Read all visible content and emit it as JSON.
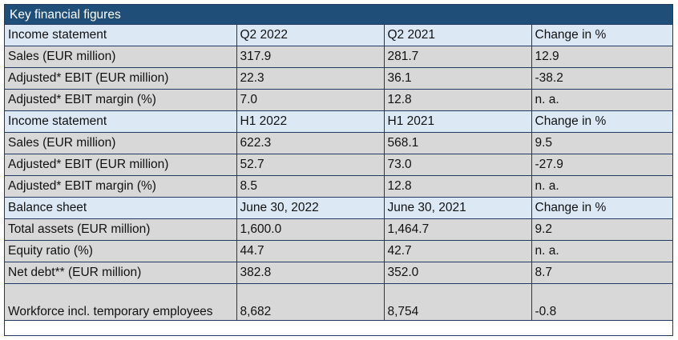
{
  "table": {
    "title": "Key financial figures",
    "sections": [
      {
        "header": [
          "Income statement",
          "Q2 2022",
          "Q2 2021",
          "Change in %"
        ],
        "rows": [
          [
            "Sales (EUR million)",
            "317.9",
            "281.7",
            "12.9"
          ],
          [
            "Adjusted* EBIT (EUR million)",
            "22.3",
            "36.1",
            "-38.2"
          ],
          [
            "Adjusted* EBIT margin (%)",
            "7.0",
            "12.8",
            "n. a."
          ]
        ]
      },
      {
        "header": [
          "Income statement",
          "H1 2022",
          "H1 2021",
          "Change in %"
        ],
        "rows": [
          [
            "Sales (EUR million)",
            "622.3",
            "568.1",
            "9.5"
          ],
          [
            "Adjusted* EBIT (EUR million)",
            "52.7",
            "73.0",
            "-27.9"
          ],
          [
            "Adjusted* EBIT margin (%)",
            "8.5",
            "12.8",
            "n. a."
          ]
        ]
      },
      {
        "header": [
          "Balance sheet",
          "June 30, 2022",
          "June 30, 2021",
          "Change in %"
        ],
        "rows": [
          [
            "Total assets (EUR million)",
            "1,600.0",
            "1,464.7",
            "9.2"
          ],
          [
            "Equity ratio (%)",
            "44.7",
            "42.7",
            "n. a."
          ],
          [
            "Net debt** (EUR million)",
            "382.8",
            "352.0",
            "8.7"
          ],
          [
            "Workforce incl. temporary employees",
            "8,682",
            "8,754",
            "-0.8"
          ]
        ]
      }
    ],
    "colors": {
      "title_bg": "#1f4e79",
      "header_bg": "#dce9f5",
      "row_bg": "#d8d8d8",
      "border": "#1f3864"
    }
  }
}
